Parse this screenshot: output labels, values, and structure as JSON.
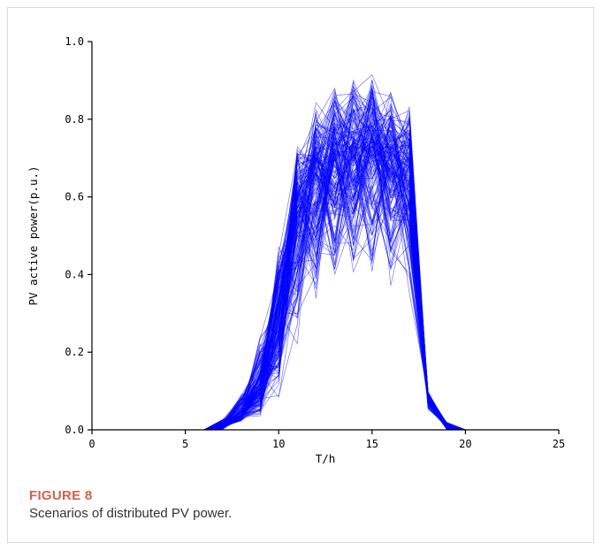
{
  "figure": {
    "label": "FIGURE 8",
    "caption": "Scenarios of distributed PV power."
  },
  "chart_data": {
    "type": "line",
    "title": "",
    "xlabel": "T/h",
    "ylabel": "PV active power(p.u.)",
    "xlim": [
      0,
      25
    ],
    "ylim": [
      0,
      1.0
    ],
    "xticks": [
      "0",
      "5",
      "10",
      "15",
      "20",
      "25"
    ],
    "yticks": [
      "0.0",
      "0.2",
      "0.4",
      "0.6",
      "0.8",
      "1.0"
    ],
    "grid": false,
    "line_color": "#0000ff",
    "x": [
      0,
      1,
      2,
      3,
      4,
      5,
      6,
      7,
      8,
      9,
      10,
      11,
      12,
      13,
      14,
      15,
      16,
      17,
      18,
      19,
      20
    ],
    "envelope": {
      "lower": [
        0,
        0,
        0,
        0,
        0,
        0,
        0,
        0,
        0.02,
        0.03,
        0.06,
        0.2,
        0.3,
        0.38,
        0.4,
        0.37,
        0.35,
        0.33,
        0.05,
        0.0,
        0
      ],
      "mean": [
        0,
        0,
        0,
        0,
        0,
        0,
        0,
        0.01,
        0.04,
        0.11,
        0.29,
        0.56,
        0.66,
        0.7,
        0.7,
        0.71,
        0.69,
        0.67,
        0.08,
        0.01,
        0
      ],
      "upper": [
        0,
        0,
        0,
        0,
        0,
        0,
        0,
        0.03,
        0.1,
        0.25,
        0.5,
        0.75,
        0.86,
        0.93,
        0.92,
        0.93,
        0.9,
        0.84,
        0.1,
        0.02,
        0
      ]
    }
  }
}
